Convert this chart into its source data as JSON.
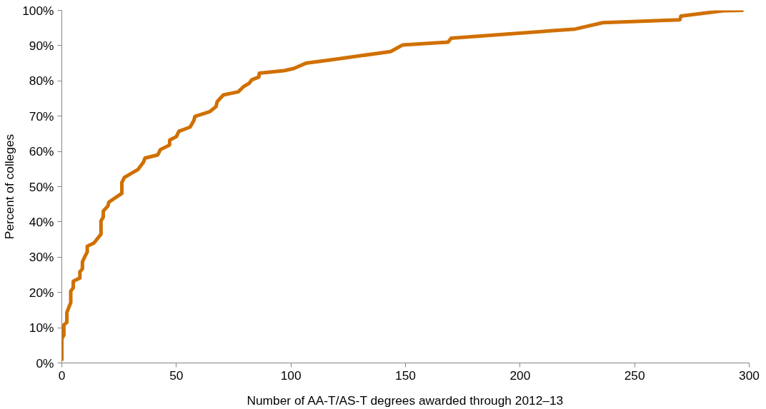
{
  "chart_data": {
    "type": "line",
    "xlabel": "Number of AA-T/AS-T degrees awarded through 2012–13",
    "ylabel": "Percent of colleges",
    "x": [
      0,
      0,
      0.9,
      0.9,
      2.2,
      2.2,
      3.2,
      3.9,
      3.9,
      5,
      5,
      7.9,
      7.9,
      9,
      9,
      10,
      11.1,
      11.1,
      14,
      17.1,
      17.1,
      18.1,
      18.1,
      20.1,
      20.5,
      26.2,
      26.2,
      27.3,
      33.3,
      34.3,
      35.6,
      36.3,
      41.9,
      43,
      47,
      47.1,
      50,
      51.1,
      56,
      57.6,
      58.1,
      64.6,
      67.3,
      67.8,
      70.5,
      77,
      79.2,
      81.9,
      82.9,
      86,
      86.2,
      97,
      101.2,
      106.5,
      120,
      143.5,
      148.8,
      168.6,
      169.9,
      224.1,
      236.1,
      269.7,
      270.2,
      288.9,
      297.5
    ],
    "series": [
      {
        "color": "#d07000",
        "values": [
          0.6,
          6.9,
          7.9,
          10.8,
          11.5,
          14.3,
          16,
          17.1,
          20.4,
          21.3,
          23.2,
          24.1,
          25.9,
          26.7,
          28.7,
          30.1,
          31.5,
          33.1,
          34,
          36.5,
          40.3,
          41.4,
          43.1,
          44.5,
          45.6,
          48.1,
          51.2,
          52.6,
          54.9,
          55.8,
          56.9,
          58.1,
          59,
          60.5,
          61.8,
          63.2,
          64.2,
          65.7,
          66.9,
          68.7,
          69.9,
          71.3,
          72.7,
          74.1,
          76,
          76.9,
          78.3,
          79.4,
          80.3,
          81.1,
          82.2,
          82.9,
          83.5,
          85,
          86.2,
          88.3,
          90.2,
          91,
          92.1,
          94.7,
          96.5,
          97.3,
          98.4,
          99.9,
          100
        ]
      }
    ],
    "xlim": [
      0,
      300
    ],
    "xticks": [
      0,
      50,
      100,
      150,
      200,
      250,
      300
    ],
    "ylim": [
      0,
      100
    ],
    "yticks": [
      {
        "value": 0,
        "label": "0%"
      },
      {
        "value": 10,
        "label": "10%"
      },
      {
        "value": 20,
        "label": "20%"
      },
      {
        "value": 30,
        "label": "30%"
      },
      {
        "value": 40,
        "label": "40%"
      },
      {
        "value": 50,
        "label": "50%"
      },
      {
        "value": 60,
        "label": "60%"
      },
      {
        "value": 70,
        "label": "70%"
      },
      {
        "value": 80,
        "label": "80%"
      },
      {
        "value": 90,
        "label": "90%"
      },
      {
        "value": 100,
        "label": "100%"
      }
    ],
    "grid": false,
    "marker": "none",
    "line_style": "solid"
  }
}
